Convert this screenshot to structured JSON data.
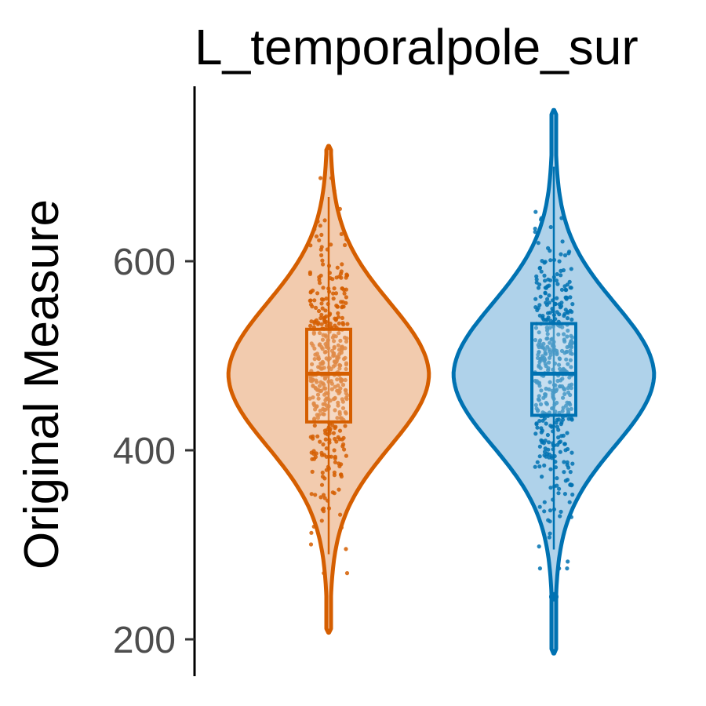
{
  "chart_data": {
    "type": "violin",
    "title": "L_temporalpole_sur",
    "xlabel": "",
    "ylabel": "Original Measure",
    "ylim": [
      170,
      790
    ],
    "yticks": [
      200,
      400,
      600
    ],
    "ytick_labels": [
      "200",
      "400",
      "600"
    ],
    "grid": false,
    "legend": "none",
    "groups": [
      {
        "color": "#D55E00",
        "fill": "#F2CBAE",
        "min": 207,
        "q1": 430,
        "median": 481,
        "q3": 528,
        "max": 722,
        "whisker_low": 290,
        "whisker_high": 668,
        "mode": 480
      },
      {
        "color": "#0072B2",
        "fill": "#AFD2EA",
        "min": 185,
        "q1": 437,
        "median": 481,
        "q3": 534,
        "max": 760,
        "whisker_low": 295,
        "whisker_high": 700,
        "mode": 480
      }
    ]
  }
}
